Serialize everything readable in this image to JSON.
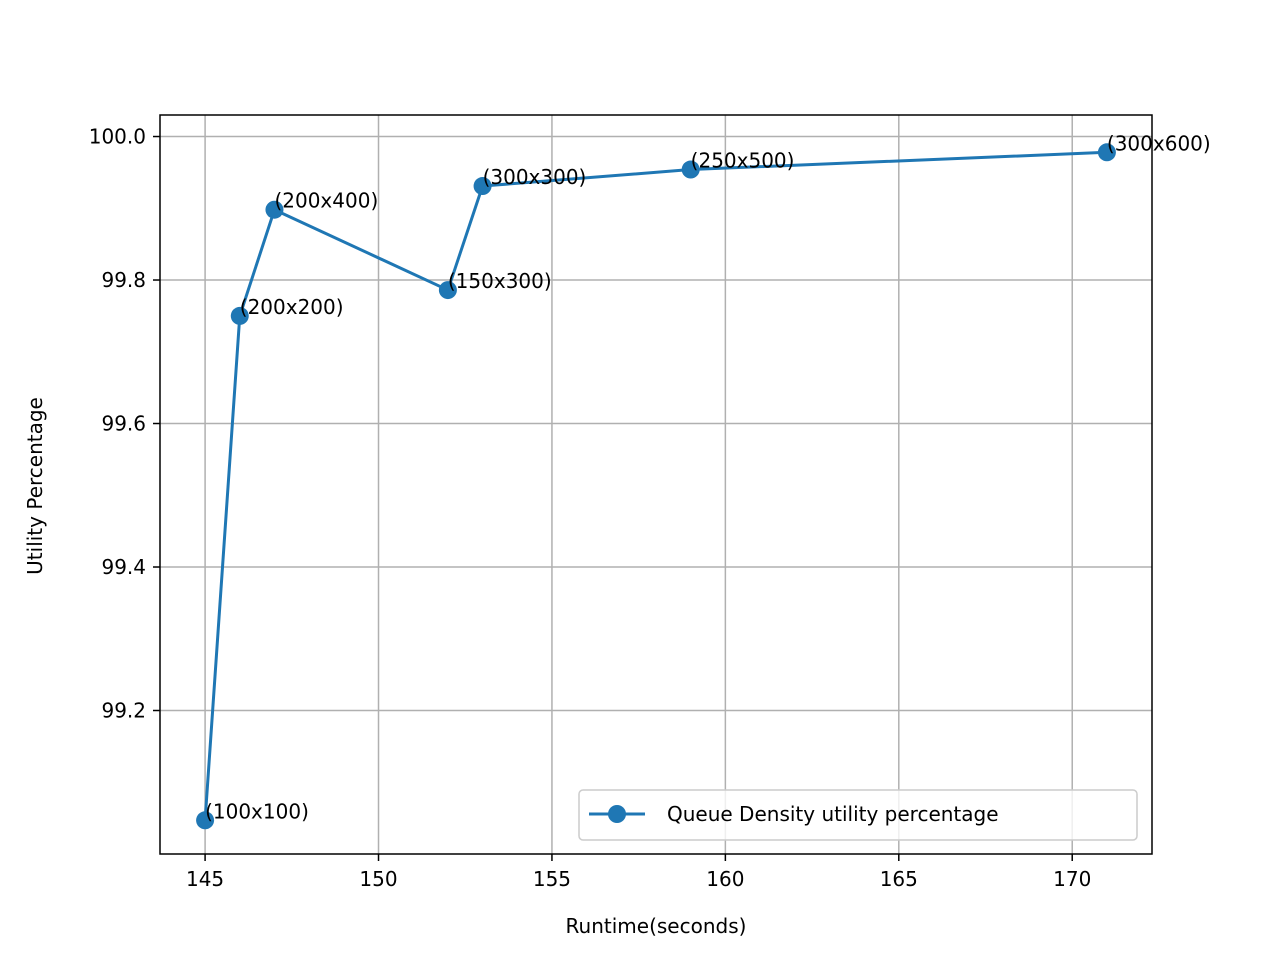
{
  "chart_data": {
    "type": "line",
    "title": "",
    "xlabel": "Runtime(seconds)",
    "ylabel": "Utility Percentage",
    "xlim": [
      143.7,
      172.3
    ],
    "ylim": [
      99.0,
      100.03
    ],
    "xticks": [
      145,
      150,
      155,
      160,
      165,
      170
    ],
    "yticks": [
      99.2,
      99.4,
      99.6,
      99.8,
      100.0
    ],
    "grid": true,
    "legend_position": "lower-right",
    "series": [
      {
        "name": "Queue Density utility percentage",
        "color": "#1f77b4",
        "marker": "circle",
        "x": [
          145,
          146,
          147,
          152,
          153,
          159,
          171
        ],
        "y": [
          99.047,
          99.75,
          99.898,
          99.786,
          99.931,
          99.954,
          99.978
        ],
        "point_labels": [
          "(100x100)",
          "(200x200)",
          "(200x400)",
          "(150x300)",
          "(300x300)",
          "(250x500)",
          "(300x600)"
        ]
      }
    ]
  }
}
